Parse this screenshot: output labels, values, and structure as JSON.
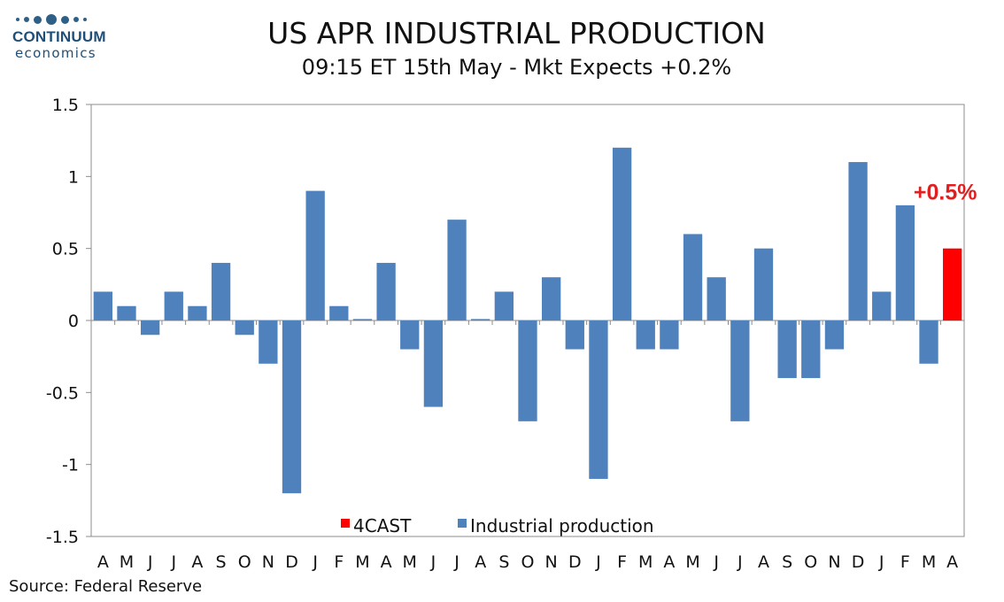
{
  "logo": {
    "name": "CONTINUUM",
    "sub": "economics"
  },
  "source": "Source: Federal Reserve",
  "colors": {
    "industrial_production": "#4f81bd",
    "forecast": "#ff0000",
    "annotation": "#e02020"
  },
  "chart_data": {
    "type": "bar",
    "title": "US APR INDUSTRIAL PRODUCTION",
    "subtitle": "09:15 ET 15th May - Mkt Expects +0.2%",
    "xlabel": "",
    "ylabel": "",
    "ylim": [
      -1.5,
      1.5
    ],
    "yticks": [
      "1.5",
      "1",
      "0.5",
      "0",
      "-0.5",
      "-1",
      "-1.5"
    ],
    "ytick_values": [
      1.5,
      1,
      0.5,
      0,
      -0.5,
      -1,
      -1.5
    ],
    "categories": [
      "A",
      "M",
      "J",
      "J",
      "A",
      "S",
      "O",
      "N",
      "D",
      "J",
      "F",
      "M",
      "A",
      "M",
      "J",
      "J",
      "A",
      "S",
      "O",
      "N",
      "D",
      "J",
      "F",
      "M",
      "A",
      "M",
      "J",
      "J",
      "A",
      "S",
      "O",
      "N",
      "D",
      "J",
      "F",
      "M",
      "A"
    ],
    "series": [
      {
        "name": "4CAST",
        "color": "#ff0000",
        "values": [
          null,
          null,
          null,
          null,
          null,
          null,
          null,
          null,
          null,
          null,
          null,
          null,
          null,
          null,
          null,
          null,
          null,
          null,
          null,
          null,
          null,
          null,
          null,
          null,
          null,
          null,
          null,
          null,
          null,
          null,
          null,
          null,
          null,
          null,
          null,
          null,
          0.5
        ]
      },
      {
        "name": "Industrial production",
        "color": "#4f81bd",
        "values": [
          0.2,
          0.1,
          -0.1,
          0.2,
          0.1,
          0.4,
          -0.1,
          -0.3,
          -1.2,
          0.9,
          0.1,
          0.01,
          0.4,
          -0.2,
          -0.6,
          0.7,
          0.01,
          0.2,
          -0.7,
          0.3,
          -0.2,
          -1.1,
          1.2,
          -0.2,
          -0.2,
          0.6,
          0.3,
          -0.7,
          0.5,
          -0.4,
          -0.4,
          -0.2,
          1.1,
          0.2,
          0.8,
          -0.3,
          null
        ]
      }
    ],
    "legend": {
      "placement": "bottom",
      "items": [
        "4CAST",
        "Industrial production"
      ]
    },
    "annotation": {
      "text": "+0.5%",
      "category_index": 36,
      "value": 0.5
    },
    "grid": false
  }
}
